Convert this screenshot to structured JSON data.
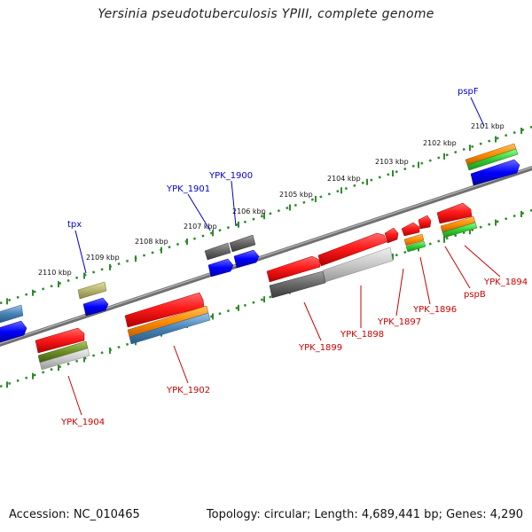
{
  "title": "Yersinia pseudotuberculosis YPIII, complete genome",
  "footer": {
    "accession": "Accession: NC_010465",
    "summary": "Topology: circular; Length: 4,689,441 bp; Genes: 4,290"
  },
  "colors": {
    "background": "#ffffff",
    "backbone": "#808080",
    "dotted_track": "#2e8b2e",
    "label_top": "#0000cc",
    "label_bottom": "#cc0000",
    "gene_red": "#ff1a1a",
    "gene_orange": "#ff8c00",
    "gene_green": "#33cc33",
    "gene_blue": "#0000ff",
    "gene_steel": "#4682b4",
    "gene_grey": "#666666",
    "gene_lightgrey": "#c8c8c8",
    "gene_olive": "#b5b56a",
    "gene_darkolive": "#6b8e23"
  },
  "kbp_labels": [
    "2101 kbp",
    "2102 kbp",
    "2103 kbp",
    "2104 kbp",
    "2105 kbp",
    "2106 kbp",
    "2107 kbp",
    "2108 kbp",
    "2109 kbp",
    "2110 kbp"
  ],
  "top_labels": [
    "pspF",
    "YPK_1900",
    "YPK_1901",
    "tpx"
  ],
  "bottom_labels": [
    "YPK_1894",
    "pspB",
    "YPK_1896",
    "YPK_1897",
    "YPK_1898",
    "YPK_1899",
    "YPK_1902",
    "YPK_1904"
  ]
}
